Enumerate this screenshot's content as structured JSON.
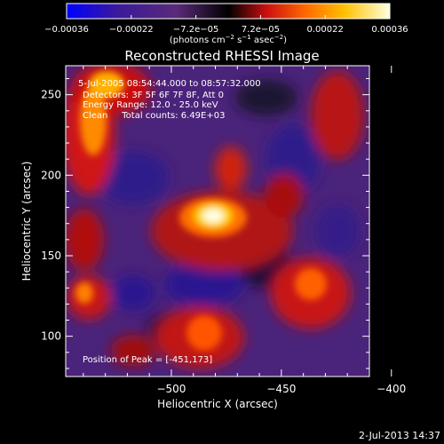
{
  "chart_data": {
    "type": "heatmap",
    "title": "Reconstructed RHESSI Image",
    "xlabel": "Heliocentric X (arcsec)",
    "ylabel": "Heliocentric Y (arcsec)",
    "xlim": [
      -548,
      -410
    ],
    "ylim": [
      75,
      268
    ],
    "x_ticks": [
      -500,
      -450,
      -400
    ],
    "x_tick_labels": [
      "−500",
      "−450",
      "−400"
    ],
    "y_ticks": [
      100,
      150,
      200,
      250
    ],
    "y_tick_labels": [
      "100",
      "150",
      "200",
      "250"
    ],
    "colorbar": {
      "range": [
        -0.00036,
        0.00036
      ],
      "tick_labels": [
        "−0.00036",
        "−0.00022",
        "−7.2e−05",
        "7.2e−05",
        "0.00022",
        "0.00036"
      ],
      "unit_prefix": "(photons cm",
      "unit_exp1": "−2",
      "unit_mid": " s",
      "unit_exp2": "−1",
      "unit_mid2": " asec",
      "unit_exp3": "−2",
      "unit_suffix": ")",
      "colors": [
        "#0000ff",
        "#3b1a9a",
        "#5a2a7a",
        "#000000",
        "#cc1010",
        "#ff6a00",
        "#ffc000",
        "#ffffe0"
      ]
    },
    "info_lines": [
      "5-Jul-2005 08:54:44.000 to 08:57:32.000",
      "Detectors: 3F 5F 6F 7F 8F, Att 0",
      "Energy Range: 12.0 - 25.0 keV",
      "Clean     Total counts: 6.49E+03"
    ],
    "peak_label": "Position of Peak = [-451,173]",
    "peak": {
      "x": -451,
      "y": 173
    },
    "timestamp": "2-Jul-2013 14:37"
  }
}
